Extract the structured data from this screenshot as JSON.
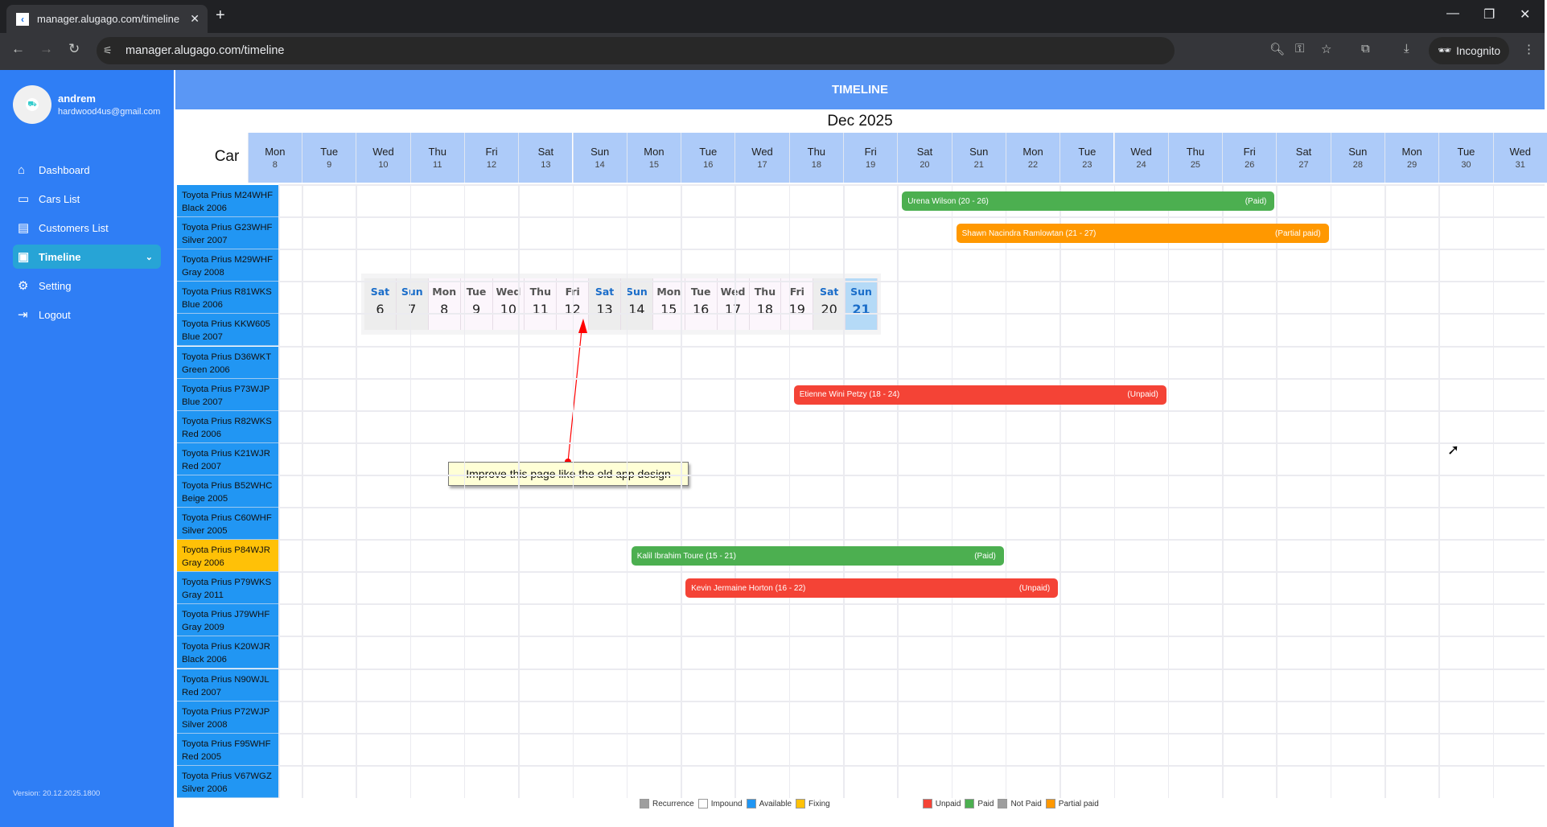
{
  "browser": {
    "tab_title": "manager.alugago.com/timeline",
    "url": "manager.alugago.com/timeline",
    "incognito_label": "Incognito"
  },
  "user": {
    "name": "andrem",
    "email": "hardwood4us@gmail.com"
  },
  "sidebar": {
    "items": [
      {
        "label": "Dashboard",
        "icon": "home-icon",
        "glyph": "⌂"
      },
      {
        "label": "Cars List",
        "icon": "car-icon",
        "glyph": "▭"
      },
      {
        "label": "Customers List",
        "icon": "customers-icon",
        "glyph": "▤"
      },
      {
        "label": "Timeline",
        "icon": "timeline-icon",
        "glyph": "▣",
        "active": true
      },
      {
        "label": "Setting",
        "icon": "settings-icon",
        "glyph": "⚙"
      },
      {
        "label": "Logout",
        "icon": "logout-icon",
        "glyph": "⇥"
      }
    ],
    "version": "Version: 20.12.2025.1800"
  },
  "header": {
    "title": "TIMELINE",
    "month": "Dec 2025",
    "car_column": "Car"
  },
  "days": [
    {
      "w": "Mon",
      "d": 8
    },
    {
      "w": "Tue",
      "d": 9
    },
    {
      "w": "Wed",
      "d": 10
    },
    {
      "w": "Thu",
      "d": 11
    },
    {
      "w": "Fri",
      "d": 12
    },
    {
      "w": "Sat",
      "d": 13
    },
    {
      "w": "Sun",
      "d": 14
    },
    {
      "w": "Mon",
      "d": 15
    },
    {
      "w": "Tue",
      "d": 16
    },
    {
      "w": "Wed",
      "d": 17
    },
    {
      "w": "Thu",
      "d": 18
    },
    {
      "w": "Fri",
      "d": 19
    },
    {
      "w": "Sat",
      "d": 20
    },
    {
      "w": "Sun",
      "d": 21
    },
    {
      "w": "Mon",
      "d": 22
    },
    {
      "w": "Tue",
      "d": 23
    },
    {
      "w": "Wed",
      "d": 24
    },
    {
      "w": "Thu",
      "d": 25
    },
    {
      "w": "Fri",
      "d": 26
    },
    {
      "w": "Sat",
      "d": 27
    },
    {
      "w": "Sun",
      "d": 28
    },
    {
      "w": "Mon",
      "d": 29
    },
    {
      "w": "Tue",
      "d": 30
    },
    {
      "w": "Wed",
      "d": 31
    }
  ],
  "cars": [
    {
      "l1": "Toyota Prius M24WHF",
      "l2": "Black 2006",
      "status": "Available"
    },
    {
      "l1": "Toyota Prius G23WHF",
      "l2": "Silver 2007",
      "status": "Available"
    },
    {
      "l1": "Toyota Prius M29WHF",
      "l2": "Gray 2008",
      "status": "Available"
    },
    {
      "l1": "Toyota Prius R81WKS",
      "l2": "Blue 2006",
      "status": "Available"
    },
    {
      "l1": "Toyota Prius KKW605",
      "l2": "Blue 2007",
      "status": "Available"
    },
    {
      "l1": "Toyota Prius D36WKT",
      "l2": "Green 2006",
      "status": "Available"
    },
    {
      "l1": "Toyota Prius P73WJP",
      "l2": "Blue 2007",
      "status": "Available"
    },
    {
      "l1": "Toyota Prius R82WKS",
      "l2": "Red 2006",
      "status": "Available"
    },
    {
      "l1": "Toyota Prius K21WJR",
      "l2": "Red 2007",
      "status": "Available"
    },
    {
      "l1": "Toyota Prius B52WHC",
      "l2": "Beige 2005",
      "status": "Available"
    },
    {
      "l1": "Toyota Prius C60WHF",
      "l2": "Silver 2005",
      "status": "Available"
    },
    {
      "l1": "Toyota Prius P84WJR",
      "l2": "Gray 2006",
      "status": "Fixing"
    },
    {
      "l1": "Toyota Prius P79WKS",
      "l2": "Gray 2011",
      "status": "Available"
    },
    {
      "l1": "Toyota Prius J79WHF",
      "l2": "Gray 2009",
      "status": "Available"
    },
    {
      "l1": "Toyota Prius K20WJR",
      "l2": "Black 2006",
      "status": "Available"
    },
    {
      "l1": "Toyota Prius N90WJL",
      "l2": "Red 2007",
      "status": "Available"
    },
    {
      "l1": "Toyota Prius P72WJP",
      "l2": "Silver 2008",
      "status": "Available"
    },
    {
      "l1": "Toyota Prius F95WHF",
      "l2": "Red 2005",
      "status": "Available"
    },
    {
      "l1": "Toyota Prius V67WGZ",
      "l2": "Silver 2006",
      "status": "Available"
    }
  ],
  "bookings": [
    {
      "car": 0,
      "start": 20,
      "end": 26,
      "label": "Urena Wilson (20 - 26)",
      "status": "(Paid)",
      "color": "#4caf50"
    },
    {
      "car": 1,
      "start": 21,
      "end": 27,
      "label": "Shawn Nacindra Ramlowtan (21 - 27)",
      "status": "(Partial paid)",
      "color": "#ff9800"
    },
    {
      "car": 6,
      "start": 18,
      "end": 24,
      "label": "Etienne Wini Petzy (18 - 24)",
      "status": "(Unpaid)",
      "color": "#f44336"
    },
    {
      "car": 11,
      "start": 15,
      "end": 21,
      "label": "Kalil Ibrahim Toure (15 - 21)",
      "status": "(Paid)",
      "color": "#4caf50"
    },
    {
      "car": 12,
      "start": 16,
      "end": 22,
      "label": "Kevin Jermaine Horton (16 - 22)",
      "status": "(Unpaid)",
      "color": "#f44336"
    }
  ],
  "legend": [
    {
      "label": "Recurrence",
      "color": "#9e9e9e"
    },
    {
      "label": "Impound",
      "color": "#ffffff"
    },
    {
      "label": "Available",
      "color": "#2196f3"
    },
    {
      "label": "Fixing",
      "color": "#ffc107",
      "gap": true
    },
    {
      "label": "Unpaid",
      "color": "#f44336"
    },
    {
      "label": "Paid",
      "color": "#4caf50"
    },
    {
      "label": "Not Paid",
      "color": "#9e9e9e"
    },
    {
      "label": "Partial paid",
      "color": "#ff9800"
    }
  ],
  "date_strip": [
    {
      "w": "Sat",
      "d": "6",
      "type": "we"
    },
    {
      "w": "Sun",
      "d": "7",
      "type": "we"
    },
    {
      "w": "Mon",
      "d": "8"
    },
    {
      "w": "Tue",
      "d": "9"
    },
    {
      "w": "Wed",
      "d": "10"
    },
    {
      "w": "Thu",
      "d": "11"
    },
    {
      "w": "Fri",
      "d": "12"
    },
    {
      "w": "Sat",
      "d": "13",
      "type": "we"
    },
    {
      "w": "Sun",
      "d": "14",
      "type": "we"
    },
    {
      "w": "Mon",
      "d": "15"
    },
    {
      "w": "Tue",
      "d": "16"
    },
    {
      "w": "Wed",
      "d": "17"
    },
    {
      "w": "Thu",
      "d": "18"
    },
    {
      "w": "Fri",
      "d": "19"
    },
    {
      "w": "Sat",
      "d": "20",
      "type": "we"
    },
    {
      "w": "Sun",
      "d": "21",
      "type": "today"
    }
  ],
  "annotation": {
    "text": "Improve this page like the old app design",
    "color": "#ff0000"
  }
}
